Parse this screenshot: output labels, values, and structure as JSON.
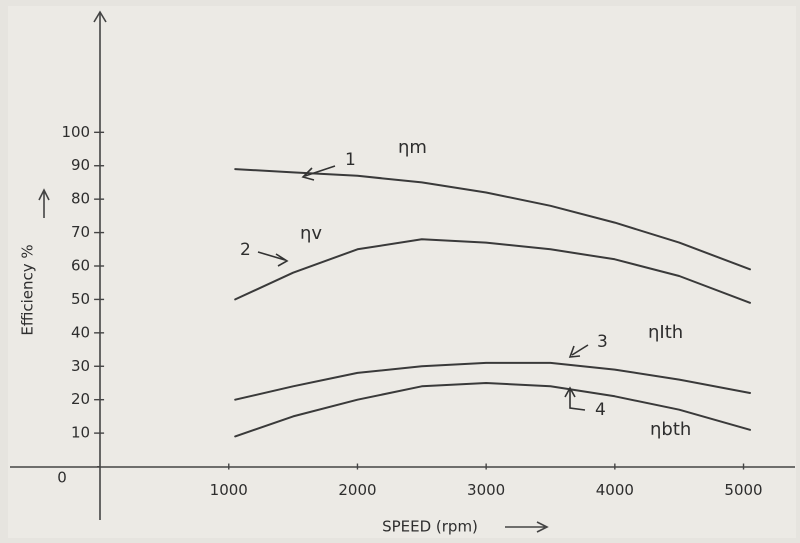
{
  "chart_data": {
    "type": "line",
    "x_label": "SPEED (rpm)",
    "y_label": "Efficiency %",
    "x": [
      1050,
      1500,
      2000,
      2500,
      3000,
      3500,
      4000,
      4500,
      5050
    ],
    "series": [
      {
        "name": "ηm",
        "label": "1",
        "color": "#3a3a3a",
        "values": [
          89,
          88,
          87,
          85,
          82,
          78,
          73,
          67,
          59
        ]
      },
      {
        "name": "ηv",
        "label": "2",
        "color": "#3a3a3a",
        "values": [
          50,
          58,
          65,
          68,
          67,
          65,
          62,
          57,
          49
        ]
      },
      {
        "name": "ηIth",
        "label": "3",
        "color": "#3a3a3a",
        "values": [
          20,
          24,
          28,
          30,
          31,
          31,
          29,
          26,
          22
        ]
      },
      {
        "name": "ηbth",
        "label": "4",
        "color": "#3a3a3a",
        "values": [
          9,
          15,
          20,
          24,
          25,
          24,
          21,
          17,
          11
        ]
      }
    ],
    "xlim": [
      -700,
      5400
    ],
    "xticks": [
      1000,
      2000,
      3000,
      4000,
      5000
    ],
    "ylim": [
      -16,
      136
    ],
    "yticks": [
      0,
      10,
      20,
      30,
      40,
      50,
      60,
      70,
      80,
      90,
      100
    ]
  }
}
